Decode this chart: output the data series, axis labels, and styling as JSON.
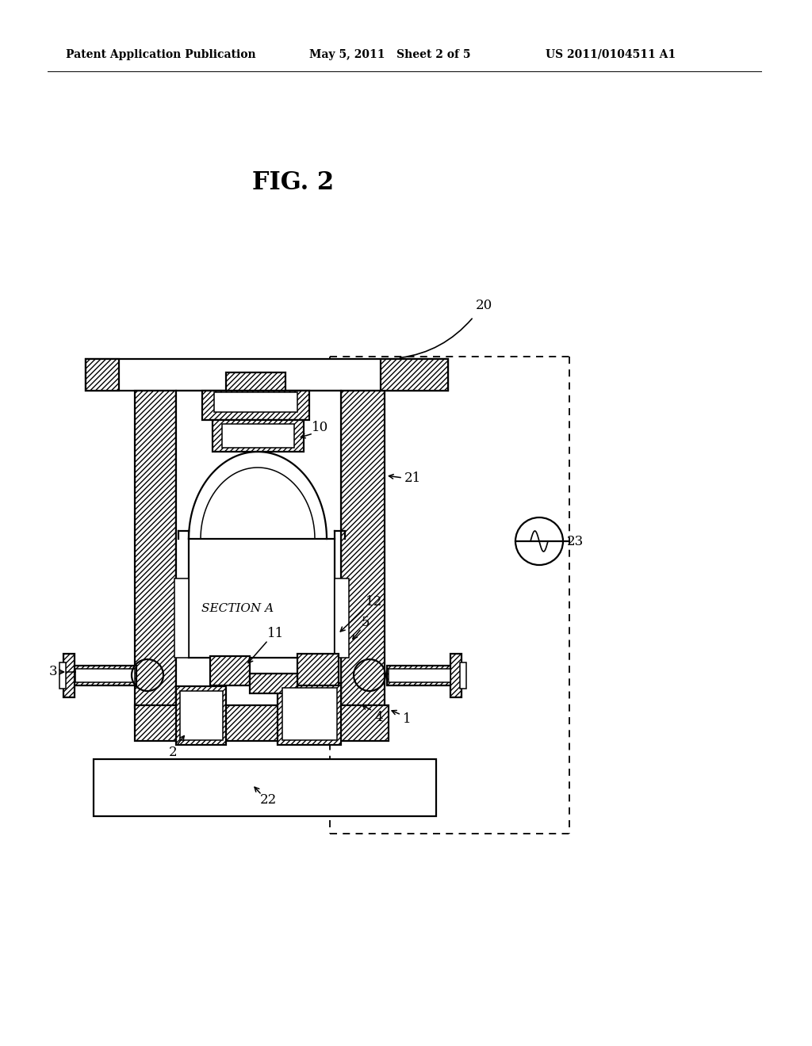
{
  "bg_color": "#ffffff",
  "header_left": "Patent Application Publication",
  "header_mid": "May 5, 2011   Sheet 2 of 5",
  "header_right": "US 2011/0104511 A1",
  "fig_label": "FIG. 2",
  "section_label": "SECTION A"
}
